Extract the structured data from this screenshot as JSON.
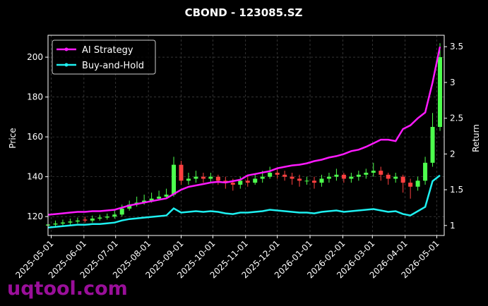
{
  "chart_data": {
    "type": "candlestick",
    "title": "CBOND - 123085.SZ",
    "ylabel": "Price",
    "y2label": "Return",
    "watermark": "uqtool.com",
    "grid": true,
    "legend": "upper left",
    "up_color": "#4dff4d",
    "down_color": "#ff4040",
    "x": [
      "2025-04-28",
      "2025-05-05",
      "2025-05-12",
      "2025-05-19",
      "2025-05-26",
      "2025-06-02",
      "2025-06-09",
      "2025-06-16",
      "2025-06-23",
      "2025-06-30",
      "2025-07-07",
      "2025-07-14",
      "2025-07-21",
      "2025-07-28",
      "2025-08-04",
      "2025-08-11",
      "2025-08-18",
      "2025-08-25",
      "2025-09-01",
      "2025-09-08",
      "2025-09-15",
      "2025-09-22",
      "2025-09-29",
      "2025-10-06",
      "2025-10-13",
      "2025-10-20",
      "2025-10-27",
      "2025-11-03",
      "2025-11-10",
      "2025-11-17",
      "2025-11-24",
      "2025-12-01",
      "2025-12-08",
      "2025-12-15",
      "2025-12-22",
      "2025-12-29",
      "2026-01-05",
      "2026-01-12",
      "2026-01-19",
      "2026-01-26",
      "2026-02-02",
      "2026-02-09",
      "2026-02-16",
      "2026-02-23",
      "2026-03-02",
      "2026-03-09",
      "2026-03-16",
      "2026-03-23",
      "2026-03-30",
      "2026-04-06",
      "2026-04-13",
      "2026-04-20",
      "2026-04-27",
      "2026-05-04"
    ],
    "ohlc": [
      [
        115.5,
        117,
        114.5,
        116
      ],
      [
        116,
        118,
        115,
        116.5
      ],
      [
        116.5,
        118.5,
        115.5,
        117
      ],
      [
        117,
        119,
        116,
        117.5
      ],
      [
        117.5,
        119.5,
        116.5,
        118
      ],
      [
        118.5,
        120,
        117,
        118
      ],
      [
        118,
        120.5,
        117,
        119
      ],
      [
        119,
        121,
        118,
        119.5
      ],
      [
        119.5,
        121.5,
        118.5,
        120
      ],
      [
        120,
        123,
        119,
        121
      ],
      [
        121,
        126,
        120,
        124
      ],
      [
        124,
        128,
        123,
        126
      ],
      [
        126,
        130,
        125,
        127
      ],
      [
        127,
        131,
        126,
        128
      ],
      [
        128,
        132,
        127,
        129
      ],
      [
        129,
        133,
        128,
        130
      ],
      [
        130,
        134,
        129,
        131
      ],
      [
        131,
        150,
        130,
        146
      ],
      [
        146,
        148,
        136,
        138
      ],
      [
        138,
        142,
        136,
        139
      ],
      [
        139,
        143,
        137,
        140
      ],
      [
        140,
        142,
        137,
        139
      ],
      [
        139,
        142,
        137,
        140
      ],
      [
        140,
        141,
        136,
        138
      ],
      [
        138,
        140,
        134,
        137
      ],
      [
        137,
        139,
        133,
        136
      ],
      [
        136,
        140,
        134,
        138
      ],
      [
        138,
        140,
        135,
        137
      ],
      [
        137,
        141,
        136,
        139
      ],
      [
        139,
        143,
        137,
        140
      ],
      [
        140,
        145,
        139,
        142
      ],
      [
        142,
        144,
        139,
        141
      ],
      [
        141,
        143,
        138,
        140
      ],
      [
        140,
        142,
        136,
        139
      ],
      [
        139,
        141,
        135,
        138
      ],
      [
        138,
        140,
        136,
        138
      ],
      [
        138,
        140,
        134,
        137
      ],
      [
        137,
        141,
        135,
        139
      ],
      [
        139,
        142,
        137,
        140
      ],
      [
        140,
        144,
        138,
        141
      ],
      [
        141,
        142,
        137,
        139
      ],
      [
        139,
        142,
        137,
        140
      ],
      [
        140,
        143,
        138,
        141
      ],
      [
        141,
        144,
        139,
        142
      ],
      [
        142,
        147,
        140,
        143
      ],
      [
        143,
        145,
        138,
        141
      ],
      [
        141,
        142,
        136,
        139
      ],
      [
        139,
        142,
        137,
        140
      ],
      [
        140,
        141,
        132,
        137
      ],
      [
        137,
        139,
        129,
        135
      ],
      [
        135,
        140,
        133,
        138
      ],
      [
        138,
        150,
        136,
        147
      ],
      [
        147,
        172,
        145,
        165
      ],
      [
        165,
        207,
        163,
        200
      ]
    ],
    "series": [
      {
        "name": "AI Strategy",
        "color": "#ff1aff",
        "axis": "y2",
        "values": [
          1.15,
          1.16,
          1.17,
          1.18,
          1.19,
          1.19,
          1.2,
          1.2,
          1.21,
          1.22,
          1.25,
          1.28,
          1.3,
          1.32,
          1.34,
          1.36,
          1.38,
          1.44,
          1.5,
          1.54,
          1.56,
          1.58,
          1.6,
          1.61,
          1.6,
          1.62,
          1.64,
          1.7,
          1.72,
          1.74,
          1.76,
          1.8,
          1.82,
          1.84,
          1.85,
          1.87,
          1.9,
          1.92,
          1.95,
          1.97,
          2.0,
          2.04,
          2.06,
          2.1,
          2.15,
          2.2,
          2.2,
          2.18,
          2.35,
          2.4,
          2.5,
          2.58,
          3.0,
          3.5
        ]
      },
      {
        "name": "Buy-and-Hold",
        "color": "#1ef0f0",
        "axis": "y2",
        "values": [
          0.97,
          0.98,
          0.99,
          1.0,
          1.01,
          1.01,
          1.02,
          1.02,
          1.03,
          1.04,
          1.07,
          1.09,
          1.1,
          1.11,
          1.12,
          1.13,
          1.14,
          1.24,
          1.18,
          1.19,
          1.2,
          1.19,
          1.2,
          1.19,
          1.17,
          1.16,
          1.18,
          1.18,
          1.19,
          1.2,
          1.22,
          1.21,
          1.2,
          1.19,
          1.18,
          1.18,
          1.17,
          1.19,
          1.2,
          1.21,
          1.19,
          1.2,
          1.21,
          1.22,
          1.23,
          1.21,
          1.19,
          1.2,
          1.16,
          1.14,
          1.2,
          1.26,
          1.62,
          1.7
        ]
      }
    ],
    "xlim": [
      "2025-04-28",
      "2026-05-08"
    ],
    "xticks": [
      "2025-05-01",
      "2025-06-01",
      "2025-07-01",
      "2025-08-01",
      "2025-09-01",
      "2025-10-01",
      "2025-11-01",
      "2025-12-01",
      "2026-01-01",
      "2026-02-01",
      "2026-03-01",
      "2026-04-01",
      "2026-05-01"
    ],
    "ylim": [
      110.5,
      211
    ],
    "yticks": [
      120,
      140,
      160,
      180,
      200
    ],
    "y2lim": [
      0.86,
      3.66
    ],
    "y2ticks": [
      1.0,
      1.5,
      2.0,
      2.5,
      3.0,
      3.5
    ]
  }
}
